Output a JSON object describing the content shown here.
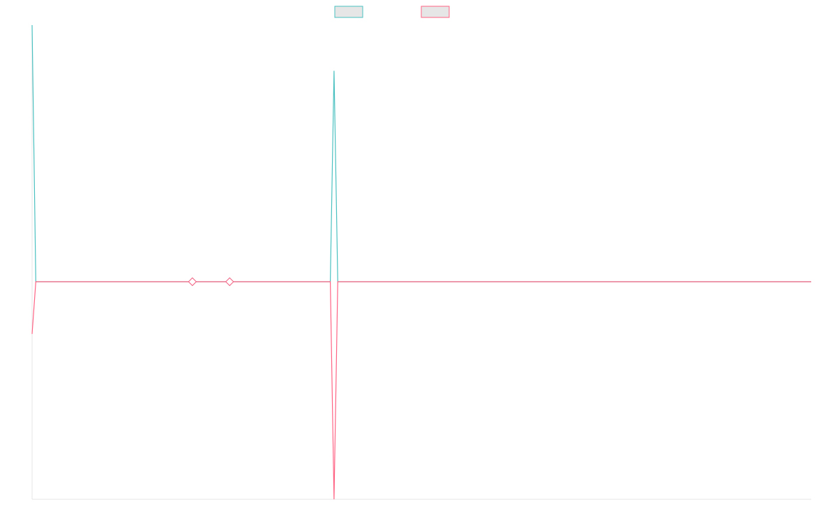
{
  "chart_data": {
    "type": "line",
    "title": "",
    "xlabel": "",
    "ylabel": "",
    "grid": false,
    "legend_position": "top-center",
    "x": [
      0,
      1,
      2,
      3,
      4,
      5,
      6,
      7,
      8,
      9,
      10,
      11,
      12,
      13,
      14,
      15,
      16,
      17,
      18,
      19,
      20,
      21,
      22,
      23,
      24,
      25,
      26,
      27,
      28,
      29,
      30,
      31,
      32,
      33,
      34,
      35,
      36,
      37,
      38,
      39,
      40,
      41,
      42,
      43,
      44,
      45,
      46,
      47,
      48,
      49,
      50,
      51,
      52,
      53,
      54,
      55,
      56,
      57,
      58,
      59,
      60,
      61,
      62,
      63,
      64,
      65,
      66,
      67,
      68,
      69,
      70,
      71,
      72,
      73,
      74,
      75,
      76,
      77,
      78,
      79,
      80,
      81,
      82,
      83,
      84,
      85,
      86,
      87,
      88,
      89,
      90,
      91,
      92,
      93,
      94,
      95,
      96,
      97,
      98,
      99,
      100,
      101,
      102,
      103,
      104,
      105,
      106,
      107,
      108,
      109,
      110,
      111,
      112,
      113,
      114,
      115,
      116,
      117,
      118,
      119,
      120,
      121,
      122,
      123,
      124,
      125,
      126,
      127,
      128,
      129,
      130,
      131,
      132,
      133,
      134,
      135,
      136,
      137,
      138,
      139,
      140,
      141,
      142,
      143,
      144,
      145,
      146,
      147,
      148,
      149,
      150,
      151,
      152,
      153,
      154,
      155,
      156,
      157,
      158,
      159,
      160,
      161,
      162,
      163,
      164,
      165,
      166,
      167,
      168,
      169,
      170,
      171,
      172,
      173,
      174,
      175,
      176,
      177,
      178,
      179,
      180,
      181,
      182,
      183,
      184,
      185,
      186,
      187,
      188,
      189,
      190,
      191,
      192,
      193,
      194,
      195,
      196,
      197,
      198,
      199,
      200,
      201,
      202,
      203,
      204,
      205,
      206,
      207,
      208,
      209
    ],
    "ylim": [
      -1.0,
      1.18
    ],
    "series": [
      {
        "name": "",
        "color": "#4bc0c0",
        "values": [
          1.18,
          0,
          0,
          0,
          0,
          0,
          0,
          0,
          0,
          0,
          0,
          0,
          0,
          0,
          0,
          0,
          0,
          0,
          0,
          0,
          0,
          0,
          0,
          0,
          0,
          0,
          0,
          0,
          0,
          0,
          0,
          0,
          0,
          0,
          0,
          0,
          0,
          0,
          0,
          0,
          0,
          0,
          0,
          0,
          0,
          0,
          0,
          0,
          0,
          0,
          0,
          0,
          0,
          0,
          0,
          0,
          0,
          0,
          0,
          0,
          0,
          0,
          0,
          0,
          0,
          0,
          0,
          0,
          0,
          0,
          0,
          0,
          0,
          0,
          0,
          0,
          0,
          0,
          0,
          0,
          0,
          0,
          0,
          0,
          0,
          0,
          0,
          0,
          0,
          0,
          0,
          0,
          0,
          0,
          0,
          0,
          0,
          0,
          0,
          0,
          0,
          0,
          0,
          0,
          0,
          0,
          0,
          0,
          0,
          0,
          0,
          0,
          0,
          0,
          0,
          0,
          0,
          0,
          0,
          0,
          0,
          0,
          0,
          0,
          0,
          0,
          0,
          0,
          0,
          0,
          0,
          0,
          0,
          0,
          0,
          0,
          0,
          0,
          0,
          0,
          0,
          0,
          0,
          0,
          0,
          0,
          0,
          0,
          0,
          0,
          0,
          0,
          0,
          0,
          0,
          0,
          0,
          0,
          0,
          0,
          0,
          0,
          0,
          0,
          0,
          0,
          0,
          0,
          0,
          0,
          0,
          0,
          0,
          0,
          0,
          0,
          0,
          0,
          0,
          0,
          0,
          0,
          0,
          0,
          0,
          0,
          0,
          0,
          0,
          0,
          0,
          0,
          0,
          0,
          0,
          0,
          0,
          0,
          0,
          0,
          0,
          0,
          0,
          0,
          0,
          0,
          0,
          0,
          0,
          0
        ],
        "point_markers": [
          43,
          53
        ]
      },
      {
        "name": "",
        "color": "#ff6384",
        "values": [
          -0.24,
          0,
          0,
          0,
          0,
          0,
          0,
          0,
          0,
          0,
          0,
          0,
          0,
          0,
          0,
          0,
          0,
          0,
          0,
          0,
          0,
          0,
          0,
          0,
          0,
          0,
          0,
          0,
          0,
          0,
          0,
          0,
          0,
          0,
          0,
          0,
          0,
          0,
          0,
          0,
          0,
          0,
          0,
          0,
          0,
          0,
          0,
          0,
          0,
          0,
          0,
          0,
          0,
          0,
          0,
          0,
          0,
          0,
          0,
          0,
          0,
          0,
          0,
          0,
          0,
          0,
          0,
          0,
          0,
          0,
          0,
          0,
          0,
          0,
          0,
          0,
          0,
          0,
          0,
          0,
          0,
          -1.0,
          0,
          0,
          0,
          0,
          0,
          0,
          0,
          0,
          0,
          0,
          0,
          0,
          0,
          0,
          0,
          0,
          0,
          0,
          0,
          0,
          0,
          0,
          0,
          0,
          0,
          0,
          0,
          0,
          0,
          0,
          0,
          0,
          0,
          0,
          0,
          0,
          0,
          0,
          0,
          0,
          0,
          0,
          0,
          0,
          0,
          0,
          0,
          0,
          0,
          0,
          0,
          0,
          0,
          0,
          0,
          0,
          0,
          0,
          0,
          0,
          0,
          0,
          0,
          0,
          0,
          0,
          0,
          0,
          0,
          0,
          0,
          0,
          0,
          0,
          0,
          0,
          0,
          0,
          0,
          0,
          0,
          0,
          0,
          0,
          0,
          0,
          0,
          0,
          0,
          0,
          0,
          0,
          0,
          0,
          0,
          0,
          0,
          0,
          0,
          0,
          0,
          0,
          0,
          0,
          0,
          0,
          0,
          0,
          0,
          0,
          0,
          0,
          0,
          0,
          0,
          0,
          0,
          0,
          0,
          0,
          0,
          0,
          0,
          0,
          0,
          0,
          0,
          0
        ],
        "point_markers": [
          43,
          53
        ]
      }
    ],
    "series_peak_overrides": {
      "0": {
        "81": 0.97
      }
    }
  }
}
